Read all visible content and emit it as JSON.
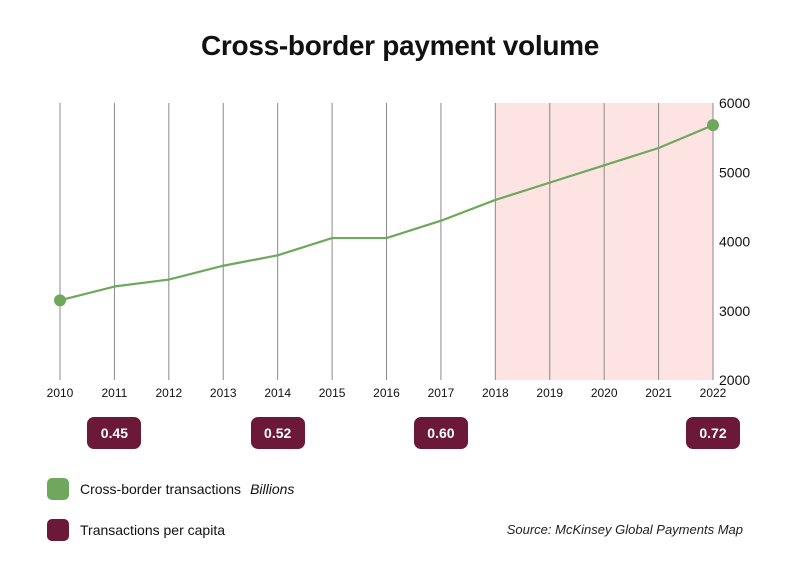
{
  "chart_data": {
    "type": "line",
    "title": "Cross-border payment volume",
    "x": [
      "2010",
      "2011",
      "2012",
      "2013",
      "2014",
      "2015",
      "2016",
      "2017",
      "2018",
      "2019",
      "2020",
      "2021",
      "2022"
    ],
    "series": [
      {
        "name": "Cross-border transactions",
        "unit": "Billions",
        "values": [
          3150,
          3350,
          3450,
          3650,
          3800,
          4050,
          4050,
          4300,
          4600,
          4850,
          5100,
          5350,
          5680
        ]
      }
    ],
    "yticks": [
      "2000",
      "3000",
      "4000",
      "5000",
      "6000"
    ],
    "ylim": [
      2000,
      6000
    ],
    "y_axis_side": "right",
    "highlighted_range": [
      "2018",
      "2022"
    ],
    "highlight_color": "#fde3e1",
    "line_color": "#6fa85d",
    "grid": "vertical",
    "per_capita": [
      {
        "year": "2011",
        "value": "0.45"
      },
      {
        "year": "2014",
        "value": "0.52"
      },
      {
        "year": "2017",
        "value": "0.60"
      },
      {
        "year": "2022",
        "value": "0.72"
      }
    ],
    "per_capita_color": "#6c1838"
  },
  "legend": [
    {
      "label": "Cross-border transactions",
      "unit": "Billions",
      "color": "#6fa85d"
    },
    {
      "label": "Transactions per capita",
      "unit": "",
      "color": "#6c1838"
    }
  ],
  "source": "Source: McKinsey Global Payments Map"
}
